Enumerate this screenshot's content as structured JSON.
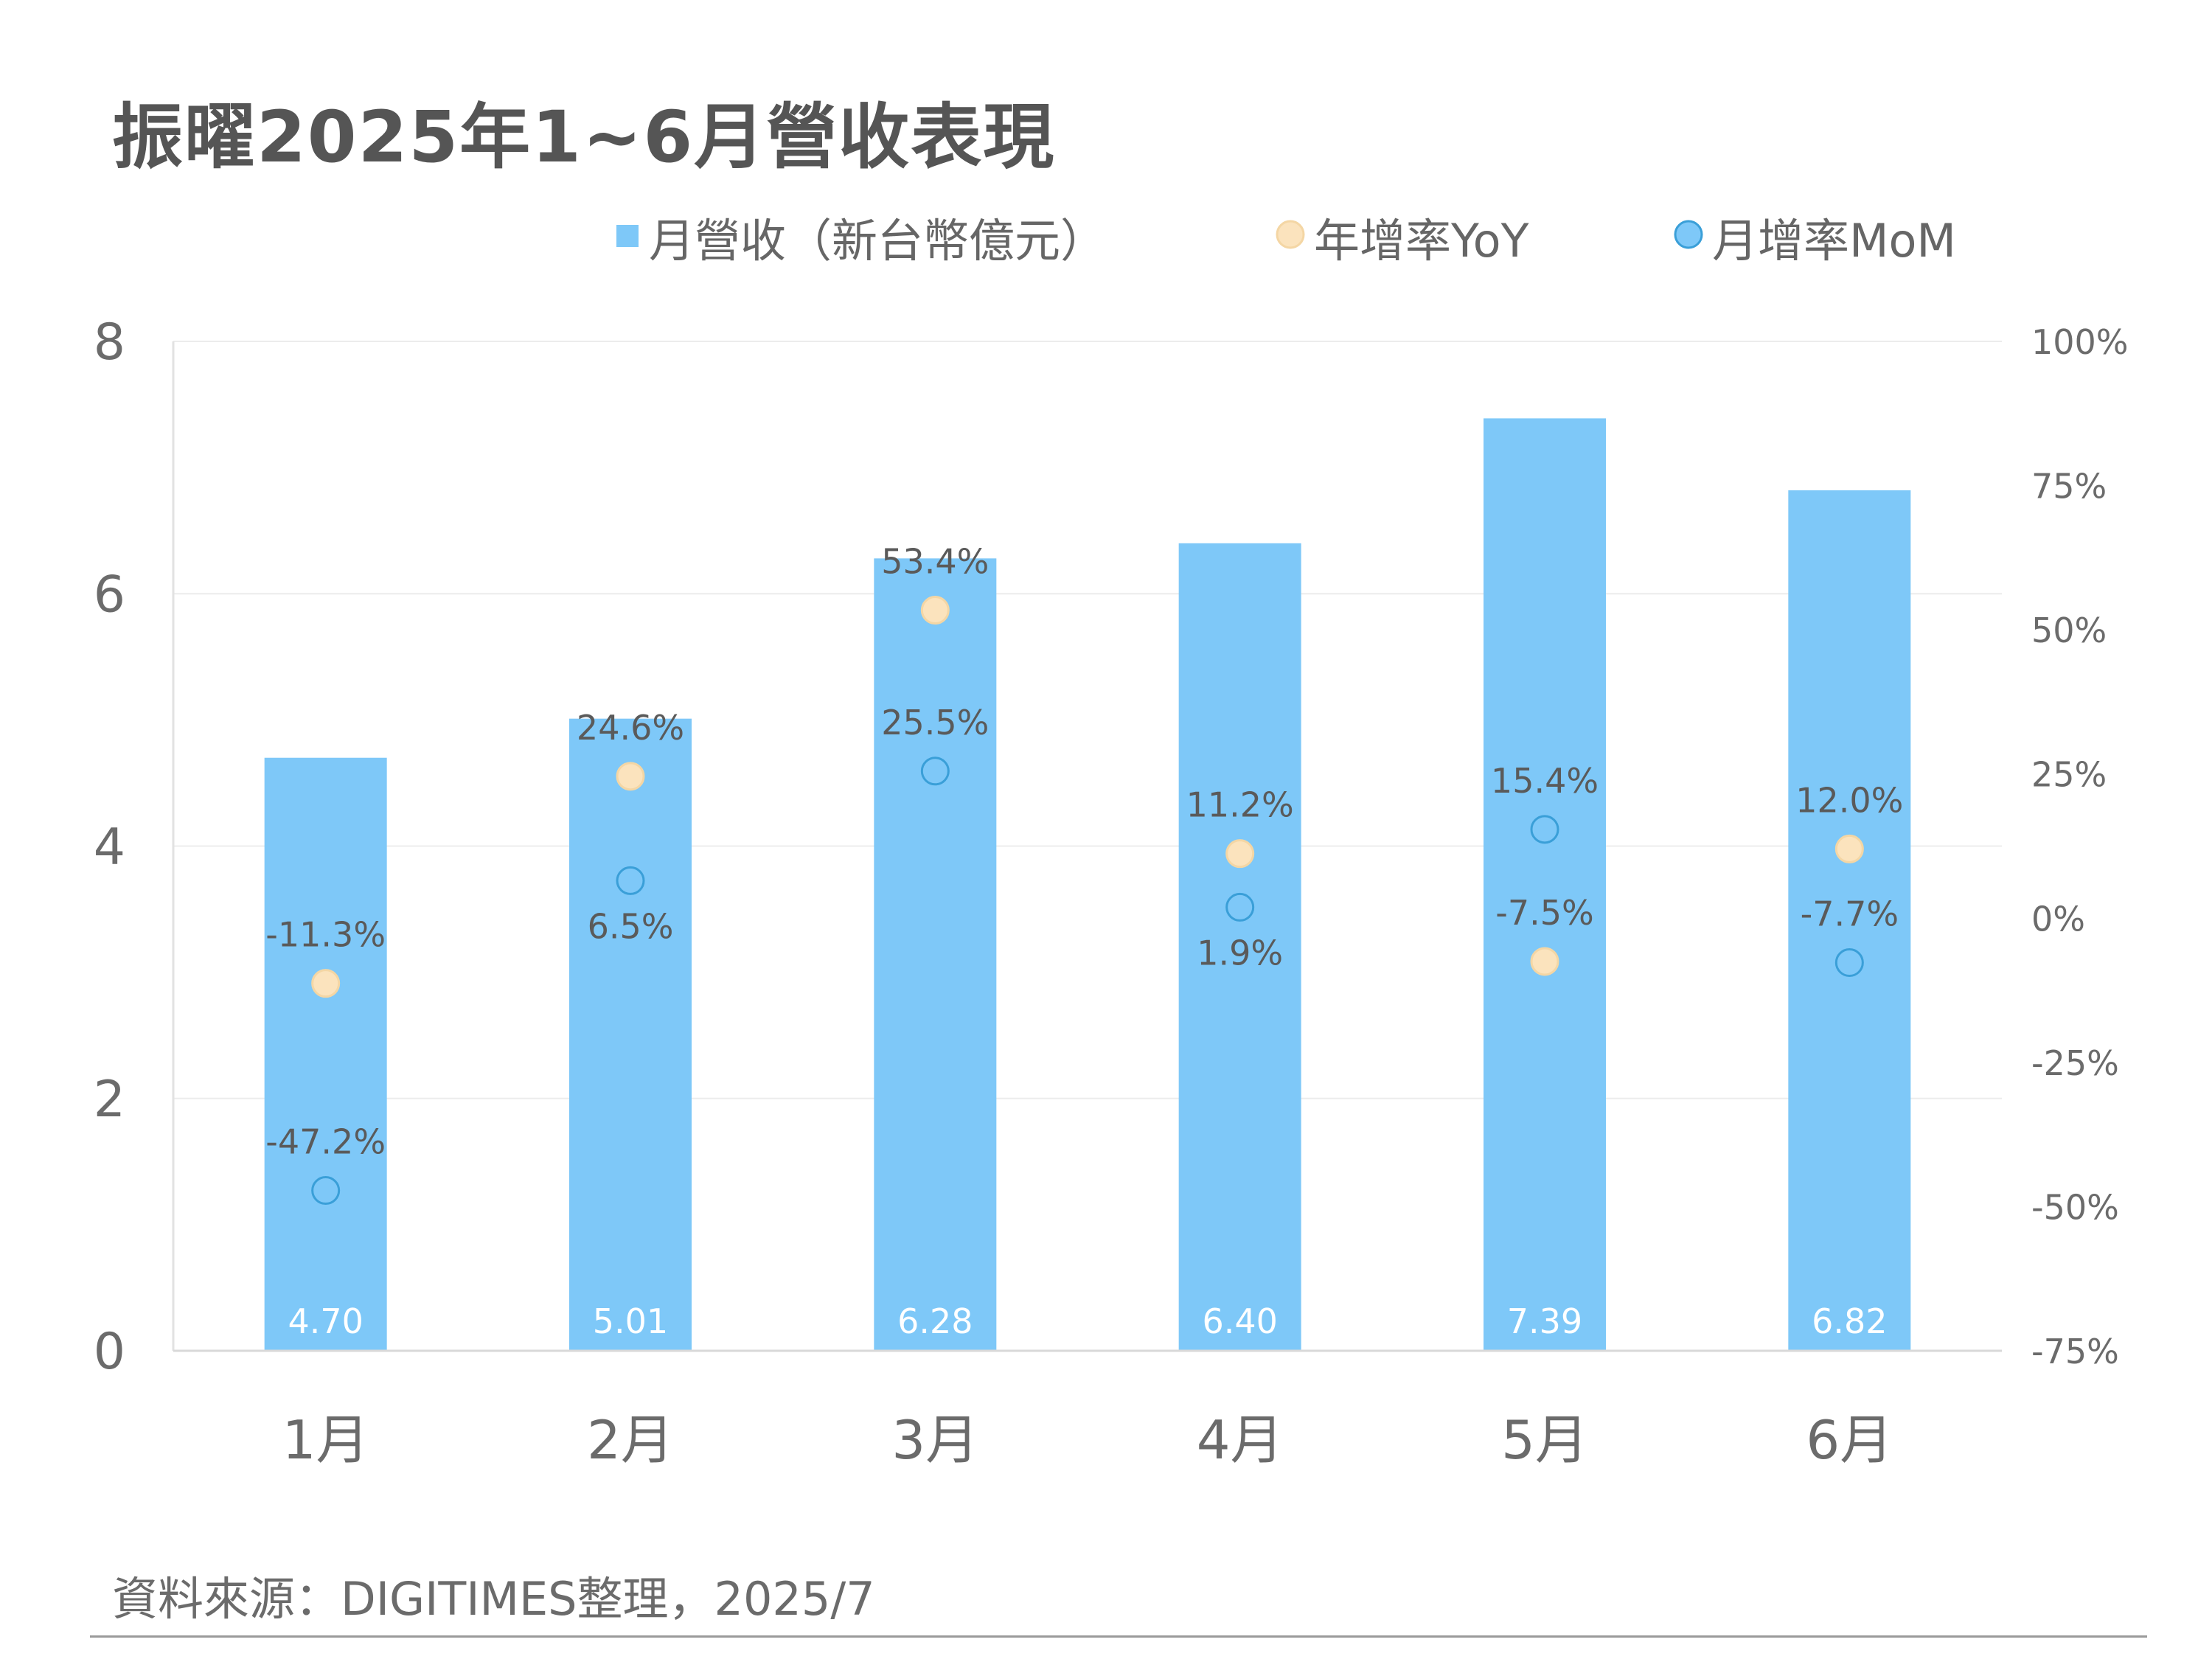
{
  "chart_data": {
    "type": "bar",
    "title": "振曜2025年1~6月營收表現",
    "source": "資料來源：DIGITIMES整理，2025/7",
    "categories": [
      "1月",
      "2月",
      "3月",
      "4月",
      "5月",
      "6月"
    ],
    "series": [
      {
        "name": "月營收（新台幣億元）",
        "kind": "bar",
        "axis": "left",
        "color": "#7ec8f8",
        "values": [
          4.7,
          5.01,
          6.28,
          6.4,
          7.39,
          6.82
        ],
        "labels": [
          "4.70",
          "5.01",
          "6.28",
          "6.40",
          "7.39",
          "6.82"
        ]
      },
      {
        "name": "年增率YoY",
        "kind": "scatter",
        "axis": "right",
        "color": "#fbe3bd",
        "values": [
          -11.3,
          24.6,
          53.4,
          11.2,
          -7.5,
          12.0
        ],
        "labels": [
          "-11.3%",
          "24.6%",
          "53.4%",
          "11.2%",
          "-7.5%",
          "12.0%"
        ]
      },
      {
        "name": "月增率MoM",
        "kind": "scatter",
        "axis": "right",
        "color": "#7ec8f8",
        "values": [
          -47.2,
          6.5,
          25.5,
          1.9,
          15.4,
          -7.7
        ],
        "labels": [
          "-47.2%",
          "6.5%",
          "25.5%",
          "1.9%",
          "15.4%",
          "-7.7%"
        ]
      }
    ],
    "ylim": [
      0,
      8
    ],
    "yticks": [
      0,
      2,
      4,
      6,
      8
    ],
    "y2lim": [
      -75,
      100
    ],
    "y2ticks": [
      -75,
      -50,
      -25,
      0,
      25,
      50,
      75,
      100
    ],
    "y2tick_labels": [
      "-75%",
      "-50%",
      "-25%",
      "0%",
      "25%",
      "50%",
      "75%",
      "100%"
    ],
    "grid": true,
    "legend_position": "top"
  }
}
